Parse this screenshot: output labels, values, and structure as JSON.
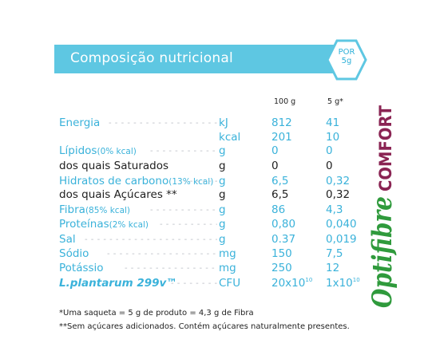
{
  "header": {
    "title": "Composição nutricional",
    "portion_line1": "POR",
    "portion_line2": "5g",
    "accent_color": "#5ec7e2"
  },
  "columns": {
    "per_100g": "100 g",
    "per_5g": "5 g*"
  },
  "rows": [
    {
      "label": "Energia",
      "note": "",
      "unit": "kJ",
      "v100": "812",
      "v5": "41",
      "color": "blue"
    },
    {
      "label": "",
      "note": "",
      "unit": "kcal",
      "v100": "201",
      "v5": "10",
      "color": "blue"
    },
    {
      "label": "Lípidos",
      "note": "(0% kcal)",
      "unit": "g",
      "v100": "0",
      "v5": "0",
      "color": "blue"
    },
    {
      "label": "dos quais Saturados",
      "note": "",
      "unit": "g",
      "v100": "0",
      "v5": "0",
      "color": "dark"
    },
    {
      "label": "Hidratos de carbono",
      "note": "(13% kcal)",
      "unit": "g",
      "v100": "6,5",
      "v5": "0,32",
      "color": "blue"
    },
    {
      "label": "dos quais Açúcares **",
      "note": "",
      "unit": "g",
      "v100": "6,5",
      "v5": "0,32",
      "color": "dark"
    },
    {
      "label": "Fibra",
      "note": "(85% kcal)",
      "unit": "g",
      "v100": "86",
      "v5": "4,3",
      "color": "blue"
    },
    {
      "label": "Proteínas",
      "note": "(2% kcal)",
      "unit": "g",
      "v100": "0,80",
      "v5": "0,040",
      "color": "blue"
    },
    {
      "label": "Sal",
      "note": "",
      "unit": "g",
      "v100": "0.37",
      "v5": "0,019",
      "color": "blue"
    },
    {
      "label": "Sódio",
      "note": "",
      "unit": "mg",
      "v100": "150",
      "v5": "7,5",
      "color": "blue"
    },
    {
      "label": "Potássio",
      "note": "",
      "unit": "mg",
      "v100": "250",
      "v5": "12",
      "color": "blue"
    },
    {
      "label": "L.plantarum 299v™",
      "note": "",
      "unit": "CFU",
      "v100": "20x10",
      "v100_sup": "10",
      "v5": "1x10",
      "v5_sup": "10",
      "color": "blue"
    }
  ],
  "brand": {
    "name_part1": "Optifibre",
    "name_part2": "COMFORT",
    "green": "#2f9a3c",
    "maroon": "#8a2453"
  },
  "footnotes": [
    "*Uma saqueta = 5 g de produto = 4,3 g de Fibra",
    "**Sem açúcares adicionados. Contém açúcares naturalmente presentes."
  ]
}
